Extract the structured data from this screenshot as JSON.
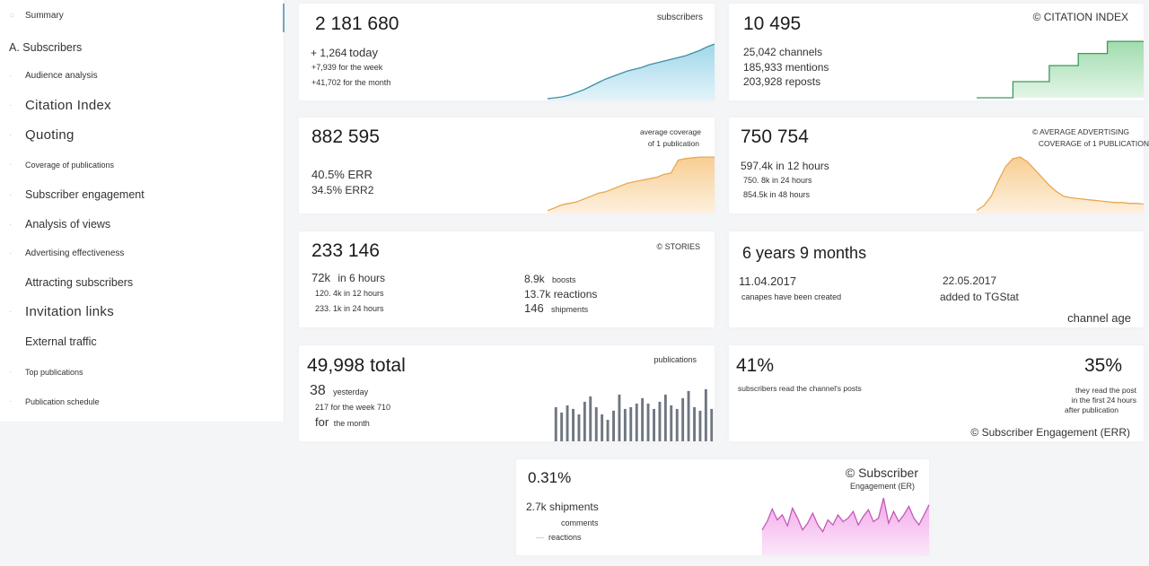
{
  "sidebar": {
    "items": [
      {
        "label": "Summary"
      },
      {
        "label": "A. Subscribers"
      },
      {
        "label": "Audience analysis"
      },
      {
        "label": "Citation Index"
      },
      {
        "label": "Quoting"
      },
      {
        "label": "Coverage of publications"
      },
      {
        "label": "Subscriber engagement"
      },
      {
        "label": "Analysis of views"
      },
      {
        "label": "Advertising effectiveness"
      },
      {
        "label": "Attracting subscribers"
      },
      {
        "label": "Invitation links"
      },
      {
        "label": "External traffic"
      },
      {
        "label": "Top publications"
      },
      {
        "label": "Publication schedule"
      }
    ]
  },
  "cards": {
    "subscribers": {
      "value": "2 181 680",
      "title": "subscribers",
      "today": "+ 1,264",
      "today_label": "today",
      "week": "+7,939  for the week",
      "month": "+41,702 for the month",
      "color": "#8fd0e6"
    },
    "citation": {
      "value": "10 495",
      "title": "© CITATION INDEX",
      "channels": "25,042  channels",
      "mentions": "185,933  mentions",
      "reposts": "203,928  reposts",
      "color": "#8fd6a0"
    },
    "coverage": {
      "value": "882 595",
      "title_1": "average coverage",
      "title_2": "of 1 publication",
      "err": "40.5% ERR",
      "err2": "34.5%  ERR2",
      "color": "#f7c57f"
    },
    "ad_coverage": {
      "value": "750 754",
      "title_1": "© AVERAGE ADVERTISING",
      "title_2": "COVERAGE of 1 PUBLICATION",
      "h12": "597.4k  in 12 hours",
      "h24": "750. 8k  in 24 hours",
      "h48": "854.5k  in  48  hours",
      "color": "#f7c57f"
    },
    "stories": {
      "value": "233 146",
      "title": "© STORIES",
      "h6": "72k",
      "h6_label": "in 6 hours",
      "h12": "120. 4k in 12 hours",
      "h24": "233. 1k in 24 hours",
      "boosts": "8.9k",
      "boosts_label": "boosts",
      "reactions": "13.7k reactions",
      "shipments": "146",
      "shipments_label": "shipments"
    },
    "age": {
      "value": "6 years 9 months",
      "created_date": "11.04.2017",
      "created_label": "canapes have been created",
      "added_date": "22.05.2017",
      "added_label": "added to TGStat",
      "caption": "channel age"
    },
    "publications": {
      "value": "49,998 total",
      "title": "publications",
      "yesterday": "38",
      "yesterday_label": "yesterday",
      "week": "217 for the week 710",
      "month": "for",
      "month_label": "the month",
      "color": "#6e7681"
    },
    "err": {
      "value": "41%",
      "subtitle": "subscribers read the channel's posts",
      "value2": "35%",
      "desc_1": "they read the post",
      "desc_2": "in the first 24 hours",
      "desc_3": "after  publication",
      "caption": "© Subscriber Engagement (ERR)"
    },
    "er": {
      "value": "0.31%",
      "shipments": "2.7k shipments",
      "comments": "comments",
      "reactions": "reactions",
      "title_1": "© Subscriber",
      "title_2": "Engagement  (ER)",
      "color": "#f09ae6"
    }
  },
  "chart_data": [
    {
      "type": "area",
      "name": "subscribers",
      "values": [
        2,
        3,
        4,
        6,
        9,
        12,
        16,
        20,
        24,
        27,
        30,
        33,
        35,
        37,
        40,
        42,
        44,
        46,
        48,
        50,
        53,
        56,
        60,
        63
      ]
    },
    {
      "type": "area",
      "name": "citation",
      "values": [
        0,
        0,
        0,
        0,
        0,
        20,
        20,
        20,
        20,
        20,
        40,
        40,
        40,
        40,
        55,
        55,
        55,
        55,
        70,
        70,
        70,
        70,
        70,
        70
      ]
    },
    {
      "type": "area",
      "name": "coverage",
      "values": [
        4,
        8,
        12,
        14,
        16,
        20,
        24,
        28,
        30,
        34,
        38,
        42,
        44,
        46,
        48,
        50,
        54,
        56,
        74,
        76,
        77,
        78,
        78,
        78
      ]
    },
    {
      "type": "area",
      "name": "ad_coverage",
      "values": [
        4,
        10,
        22,
        42,
        60,
        70,
        72,
        66,
        56,
        46,
        36,
        28,
        22,
        20,
        19,
        18,
        17,
        16,
        15,
        14,
        14,
        13,
        13,
        12
      ]
    },
    {
      "type": "bar",
      "name": "publications",
      "values": [
        38,
        32,
        40,
        36,
        30,
        44,
        50,
        38,
        30,
        24,
        34,
        52,
        36,
        38,
        42,
        48,
        42,
        36,
        44,
        52,
        40,
        36,
        48,
        56,
        38,
        34,
        58,
        36
      ]
    },
    {
      "type": "area",
      "name": "er",
      "values": [
        30,
        40,
        55,
        42,
        48,
        35,
        56,
        44,
        30,
        38,
        50,
        36,
        28,
        42,
        36,
        48,
        40,
        44,
        52,
        36,
        46,
        54,
        40,
        44,
        68,
        38,
        52,
        40,
        48,
        58,
        44,
        36,
        48,
        60
      ]
    }
  ]
}
